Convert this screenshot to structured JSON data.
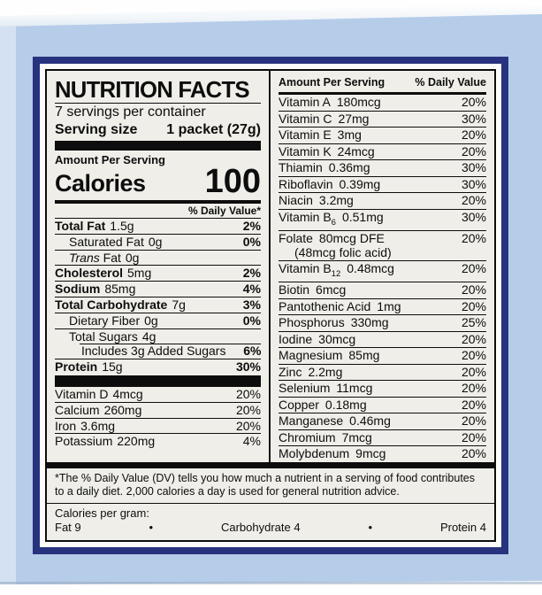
{
  "colors": {
    "box_blue": "#b6cde9",
    "label_border_navy": "#27337e",
    "label_background": "#efeee9",
    "text_black": "#0d0d0d"
  },
  "label": {
    "title": "NUTRITION FACTS",
    "servings_per_container": "7 servings per container",
    "serving_size_label": "Serving size",
    "serving_size_value": "1 packet (27g)",
    "amount_per_serving": "Amount Per Serving",
    "calories_label": "Calories",
    "calories_value": "100",
    "daily_value_header": "% Daily Value*",
    "macro_rows": [
      {
        "name": "Total Fat",
        "amount": "1.5g",
        "dv": "2%",
        "bold": true
      },
      {
        "name": "Saturated Fat",
        "amount": "0g",
        "dv": "0%",
        "indent": 1
      },
      {
        "name_italic": "Trans",
        "name": " Fat",
        "amount": "0g",
        "dv": "",
        "indent": 1
      },
      {
        "name": "Cholesterol",
        "amount": "5mg",
        "dv": "2%",
        "bold": true
      },
      {
        "name": "Sodium",
        "amount": "85mg",
        "dv": "4%",
        "bold": true
      },
      {
        "name": "Total Carbohydrate",
        "amount": "7g",
        "dv": "3%",
        "bold": true
      },
      {
        "name": "Dietary Fiber",
        "amount": "0g",
        "dv": "0%",
        "indent": 1
      },
      {
        "name": "Total Sugars",
        "amount": "4g",
        "dv": "",
        "indent": 1
      },
      {
        "name": "Includes 3g Added Sugars",
        "amount": "",
        "dv": "6%",
        "indent": 2,
        "sep": "indent"
      },
      {
        "name": "Protein",
        "amount": "15g",
        "dv": "30%",
        "bold": true
      }
    ],
    "micro_rows": [
      {
        "name": "Vitamin D",
        "amount": "4mcg",
        "dv": "20%"
      },
      {
        "name": "Calcium",
        "amount": "260mg",
        "dv": "20%"
      },
      {
        "name": "Iron",
        "amount": "3.6mg",
        "dv": "20%"
      },
      {
        "name": "Potassium",
        "amount": "220mg",
        "dv": "4%"
      }
    ],
    "right_header_left": "Amount Per Serving",
    "right_header_right": "% Daily Value",
    "right_rows": [
      {
        "name": "Vitamin A",
        "amount": "180mcg",
        "dv": "20%"
      },
      {
        "name": "Vitamin C",
        "amount": "27mg",
        "dv": "30%"
      },
      {
        "name": "Vitamin E",
        "amount": "3mg",
        "dv": "20%"
      },
      {
        "name": "Vitamin K",
        "amount": "24mcg",
        "dv": "20%"
      },
      {
        "name": "Thiamin",
        "amount": "0.36mg",
        "dv": "30%"
      },
      {
        "name": "Riboflavin",
        "amount": "0.39mg",
        "dv": "30%"
      },
      {
        "name": "Niacin",
        "amount": "3.2mg",
        "dv": "20%"
      },
      {
        "name": "Vitamin B",
        "sub": "6",
        "amount": "0.51mg",
        "dv": "30%"
      },
      {
        "name": "Folate",
        "amount": "80mcg DFE",
        "dv": "20%",
        "note": "(48mcg folic acid)"
      },
      {
        "name": "Vitamin B",
        "sub": "12",
        "amount": "0.48mcg",
        "dv": "20%"
      },
      {
        "name": "Biotin",
        "amount": "6mcg",
        "dv": "20%"
      },
      {
        "name": "Pantothenic Acid",
        "amount": "1mg",
        "dv": "20%"
      },
      {
        "name": "Phosphorus",
        "amount": "330mg",
        "dv": "25%"
      },
      {
        "name": "Iodine",
        "amount": "30mcg",
        "dv": "20%"
      },
      {
        "name": "Magnesium",
        "amount": "85mg",
        "dv": "20%"
      },
      {
        "name": "Zinc",
        "amount": "2.2mg",
        "dv": "20%"
      },
      {
        "name": "Selenium",
        "amount": "11mcg",
        "dv": "20%"
      },
      {
        "name": "Copper",
        "amount": "0.18mg",
        "dv": "20%"
      },
      {
        "name": "Manganese",
        "amount": "0.46mg",
        "dv": "20%"
      },
      {
        "name": "Chromium",
        "amount": "7mcg",
        "dv": "20%"
      },
      {
        "name": "Molybdenum",
        "amount": "9mcg",
        "dv": "20%"
      }
    ],
    "footnote": "*The % Daily Value (DV) tells you how much a nutrient in a serving of food contributes to a daily diet. 2,000 calories a day is used for general nutrition advice.",
    "calories_per_gram_label": "Calories per gram:",
    "calories_per_gram": [
      "Fat 9",
      "Carbohydrate 4",
      "Protein 4"
    ],
    "calories_per_gram_separator": "•"
  }
}
